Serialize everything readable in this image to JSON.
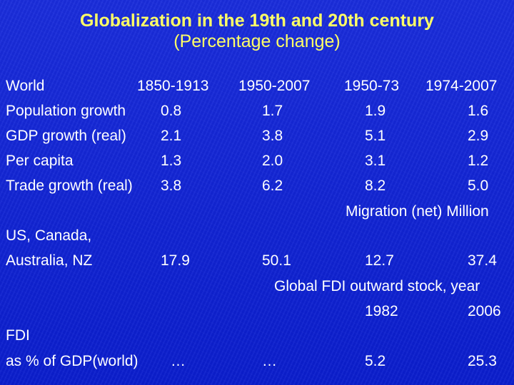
{
  "title": "Globalization in the 19th and 20th century",
  "subtitle": "(Percentage change)",
  "header": {
    "label": "World",
    "periods": [
      "1850-1913",
      "1950-2007",
      "1950-73",
      "1974-2007"
    ]
  },
  "rows": [
    {
      "label": "Population growth",
      "values": [
        "0.8",
        "1.7",
        "1.9",
        "1.6"
      ]
    },
    {
      "label": "GDP growth (real)",
      "values": [
        "2.1",
        "3.8",
        "5.1",
        "2.9"
      ]
    },
    {
      "label": "Per capita",
      "values": [
        "1.3",
        "2.0",
        "3.1",
        "1.2"
      ]
    },
    {
      "label": "Trade growth (real)",
      "values": [
        "3.8",
        "6.2",
        "8.2",
        "5.0"
      ]
    }
  ],
  "migration": {
    "heading": "Migration (net) Million",
    "label_line1": "US, Canada,",
    "label_line2": "Australia, NZ",
    "values": [
      "17.9",
      "50.1",
      "12.7",
      "37.4"
    ]
  },
  "fdi_stock": {
    "heading": "Global FDI outward stock, year",
    "years": [
      "1982",
      "2006"
    ]
  },
  "fdi": {
    "label_line1": "FDI",
    "label_line2": "as % of GDP(world)",
    "values": [
      "…",
      "…",
      "5.2",
      "25.3"
    ]
  }
}
